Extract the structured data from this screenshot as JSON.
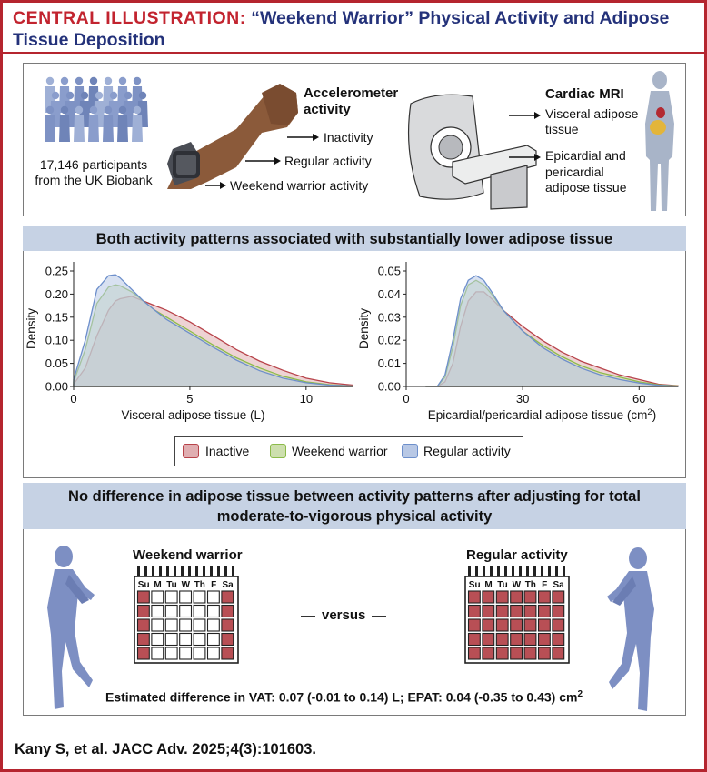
{
  "header": {
    "label": "CENTRAL ILLUSTRATION:",
    "title": "“Weekend Warrior” Physical Activity and Adipose Tissue Deposition"
  },
  "top_panel": {
    "participants": "17,146 participants from the UK Biobank",
    "accelerometer_heading": "Accelerometer activity",
    "activity_types": [
      "Inactivity",
      "Regular activity",
      "Weekend warrior activity"
    ],
    "mri_heading": "Cardiac MRI",
    "mri_measures": [
      "Visceral adipose tissue",
      "Epicardial and pericardial adipose tissue"
    ]
  },
  "middle_band": "Both activity patterns associated with substantially lower adipose tissue",
  "colors": {
    "inactive_fill": "#e0aeb1",
    "inactive_line": "#b8434a",
    "weekend_fill": "#cddfae",
    "weekend_line": "#8cbb4a",
    "regular_fill": "#b8c8e5",
    "regular_line": "#6d8fcb",
    "overlap_fill": "#a5a79a",
    "band": "#c6d2e4",
    "frame_red": "#b5252f",
    "title_blue": "#24327a"
  },
  "legend": [
    "Inactive",
    "Weekend warrior",
    "Regular activity"
  ],
  "chart_data": [
    {
      "type": "area",
      "xlabel": "Visceral adipose tissue (L)",
      "ylabel": "Density",
      "xlim": [
        0,
        12
      ],
      "ylim": [
        0,
        0.25
      ],
      "x_ticks": [
        "0",
        "5",
        "10"
      ],
      "y_ticks": [
        "0.00",
        "0.05",
        "0.10",
        "0.15",
        "0.20",
        "0.25"
      ],
      "x": [
        0,
        0.5,
        1,
        1.5,
        1.8,
        2,
        2.5,
        3,
        3.5,
        4,
        5,
        6,
        7,
        8,
        9,
        10,
        11,
        12
      ],
      "series": [
        {
          "name": "Inactive",
          "values": [
            0.005,
            0.04,
            0.11,
            0.165,
            0.185,
            0.19,
            0.195,
            0.185,
            0.175,
            0.165,
            0.14,
            0.11,
            0.08,
            0.055,
            0.035,
            0.018,
            0.008,
            0.003
          ]
        },
        {
          "name": "Weekend warrior",
          "values": [
            0.01,
            0.08,
            0.18,
            0.215,
            0.22,
            0.218,
            0.205,
            0.185,
            0.165,
            0.15,
            0.12,
            0.09,
            0.062,
            0.04,
            0.022,
            0.01,
            0.004,
            0.001
          ]
        },
        {
          "name": "Regular activity",
          "values": [
            0.015,
            0.1,
            0.21,
            0.24,
            0.242,
            0.235,
            0.21,
            0.185,
            0.165,
            0.145,
            0.115,
            0.085,
            0.057,
            0.034,
            0.018,
            0.008,
            0.003,
            0.001
          ]
        }
      ]
    },
    {
      "type": "area",
      "xlabel": "Epicardial/pericardial adipose tissue (cm",
      "xlabel_sup": "2",
      "xlabel_end": ")",
      "ylabel": "Density",
      "xlim": [
        0,
        70
      ],
      "ylim": [
        0,
        0.05
      ],
      "x_ticks": [
        "0",
        "30",
        "60"
      ],
      "y_ticks": [
        "0.00",
        "0.01",
        "0.02",
        "0.03",
        "0.04",
        "0.05"
      ],
      "x": [
        5,
        8,
        10,
        12,
        14,
        16,
        18,
        20,
        22,
        25,
        30,
        35,
        40,
        45,
        50,
        55,
        60,
        65,
        70
      ],
      "series": [
        {
          "name": "Inactive",
          "values": [
            0.0,
            0.0,
            0.002,
            0.01,
            0.026,
            0.037,
            0.041,
            0.041,
            0.038,
            0.033,
            0.026,
            0.02,
            0.015,
            0.011,
            0.008,
            0.005,
            0.003,
            0.001,
            0.0003
          ]
        },
        {
          "name": "Weekend warrior",
          "values": [
            0.0,
            0.0,
            0.004,
            0.017,
            0.035,
            0.044,
            0.046,
            0.044,
            0.04,
            0.033,
            0.024,
            0.018,
            0.013,
            0.009,
            0.006,
            0.004,
            0.002,
            0.0007,
            0.0002
          ]
        },
        {
          "name": "Regular activity",
          "values": [
            0.0,
            0.0,
            0.005,
            0.02,
            0.038,
            0.046,
            0.048,
            0.046,
            0.041,
            0.033,
            0.024,
            0.017,
            0.012,
            0.008,
            0.005,
            0.003,
            0.0015,
            0.0005,
            0.0001
          ]
        }
      ]
    }
  ],
  "bottom_band": "No difference in adipose tissue between activity patterns after adjusting for total moderate-to-vigorous physical activity",
  "comparison": {
    "left_label": "Weekend warrior",
    "right_label": "Regular activity",
    "versus": "versus",
    "days": [
      "Su",
      "M",
      "Tu",
      "W",
      "Th",
      "F",
      "Sa"
    ],
    "weekend_active_days": [
      0,
      6
    ],
    "regular_active_days": [
      0,
      1,
      2,
      3,
      4,
      5,
      6
    ]
  },
  "estimate": "Estimated difference in VAT: 0.07 (-0.01 to 0.14) L; EPAT: 0.04 (-0.35 to 0.43) cm",
  "estimate_sup": "2",
  "citation": "Kany S, et al. JACC Adv. 2025;4(3):101603."
}
